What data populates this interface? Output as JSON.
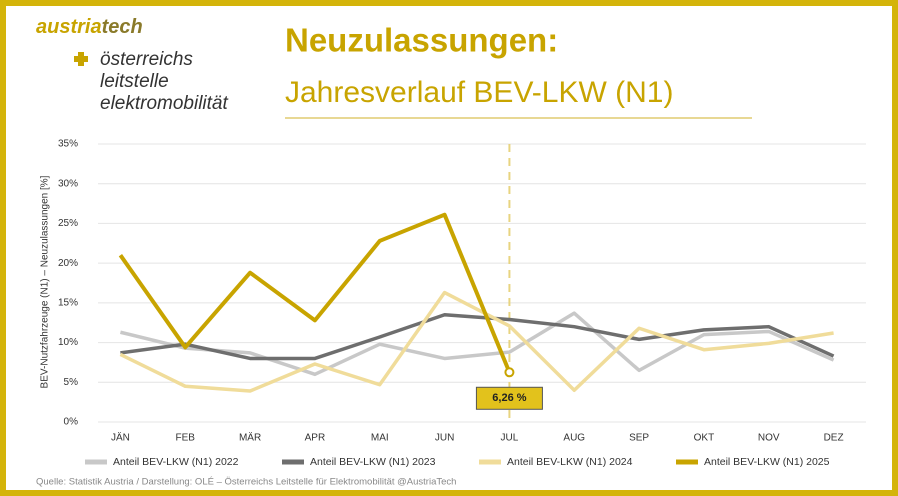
{
  "header": {
    "brand": [
      "austria",
      "tech"
    ],
    "org": [
      "österreichs",
      "leitstelle",
      "elektromobilität"
    ]
  },
  "chart_data": {
    "type": "line",
    "title": "Neuzulassungen:",
    "subtitle": "Jahresverlauf BEV-LKW (N1)",
    "y_label": "BEV-Nutzfahrzeuge (N1) – Neuzulassungen [%]",
    "source": "Quelle: Statistik Austria / Darstellung: OLÉ – Österreichs Leitstelle für Elektromobilität @AustriaTech",
    "categories": [
      "JÄN",
      "FEB",
      "MÄR",
      "APR",
      "MAI",
      "JUN",
      "JUL",
      "AUG",
      "SEP",
      "OKT",
      "NOV",
      "DEZ"
    ],
    "ylim": [
      0,
      35
    ],
    "yticks": [
      {
        "value": 0,
        "label": "0%"
      },
      {
        "value": 5,
        "label": "5%"
      },
      {
        "value": 10,
        "label": "10%"
      },
      {
        "value": 15,
        "label": "15%"
      },
      {
        "value": 20,
        "label": "20%"
      },
      {
        "value": 25,
        "label": "25%"
      },
      {
        "value": 30,
        "label": "30%"
      },
      {
        "value": 35,
        "label": "35%"
      }
    ],
    "grid": true,
    "series": [
      {
        "name": "Anteil BEV-LKW (N1) 2022",
        "color": "#c8c8c8",
        "values": [
          11.3,
          9.3,
          8.7,
          6.0,
          9.8,
          8.0,
          8.8,
          13.7,
          6.5,
          11.0,
          11.4,
          7.8
        ]
      },
      {
        "name": "Anteil BEV-LKW (N1) 2023",
        "color": "#6e6e6e",
        "values": [
          8.7,
          9.8,
          8.0,
          8.0,
          10.7,
          13.5,
          12.9,
          12.0,
          10.4,
          11.6,
          12.0,
          8.3
        ]
      },
      {
        "name": "Anteil BEV-LKW (N1) 2024",
        "color": "#f0dc9a",
        "values": [
          8.5,
          4.5,
          3.9,
          7.3,
          4.7,
          16.3,
          12.1,
          4.0,
          11.8,
          9.1,
          9.9,
          11.2
        ]
      },
      {
        "name": "Anteil BEV-LKW (N1) 2025",
        "color": "#c8a400",
        "values": [
          21.0,
          9.4,
          18.8,
          12.8,
          22.8,
          26.1,
          6.26,
          null,
          null,
          null,
          null,
          null
        ],
        "value_labels": [
          null,
          null,
          null,
          null,
          null,
          null,
          "6,26 %",
          null,
          null,
          null,
          null,
          null
        ]
      }
    ]
  }
}
